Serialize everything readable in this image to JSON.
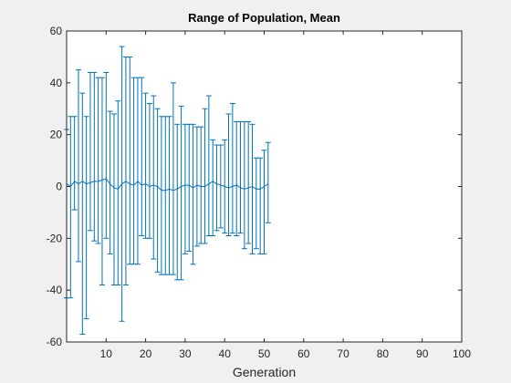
{
  "chart_data": {
    "type": "errorbar",
    "title": "Range of Population, Mean",
    "xlabel": "Generation",
    "ylabel": "",
    "xlim": [
      0,
      100
    ],
    "ylim": [
      -60,
      60
    ],
    "xticks": [
      10,
      20,
      30,
      40,
      50,
      60,
      70,
      80,
      90,
      100
    ],
    "yticks": [
      60,
      40,
      20,
      0,
      -20,
      -40,
      -60
    ],
    "grid": false,
    "series_color": "#0072bd",
    "x": [
      0,
      1,
      2,
      3,
      4,
      5,
      6,
      7,
      8,
      9,
      10,
      11,
      12,
      13,
      14,
      15,
      16,
      17,
      18,
      19,
      20,
      21,
      22,
      23,
      24,
      25,
      26,
      27,
      28,
      29,
      30,
      31,
      32,
      33,
      34,
      35,
      36,
      37,
      38,
      39,
      40,
      41,
      42,
      43,
      44,
      45,
      46,
      47,
      48,
      49,
      50,
      51
    ],
    "mean": [
      1.0,
      0.0,
      2.0,
      1.0,
      2.0,
      1.0,
      1.5,
      2.0,
      2.0,
      2.5,
      3.0,
      1.0,
      -0.5,
      -1.0,
      1.0,
      2.0,
      1.0,
      0.5,
      2.0,
      0.5,
      1.0,
      0.0,
      0.5,
      0.0,
      -1.5,
      -1.5,
      -1.0,
      -1.5,
      -1.0,
      0.0,
      0.5,
      0.5,
      -0.5,
      0.5,
      0.0,
      0.0,
      1.0,
      2.0,
      1.0,
      0.5,
      0.0,
      -0.5,
      0.0,
      0.5,
      -0.5,
      -1.0,
      -0.5,
      0.0,
      -1.0,
      -1.0,
      0.0,
      1.0
    ],
    "upper": [
      22,
      27,
      27,
      45,
      36,
      27,
      44,
      44,
      42,
      42,
      44,
      29,
      28,
      33,
      54,
      50,
      50,
      42,
      42,
      42,
      36,
      32,
      35,
      30,
      27,
      27,
      27,
      40,
      24,
      31,
      24,
      24,
      24,
      23,
      23,
      30,
      35,
      18,
      16,
      16,
      18,
      28,
      32,
      25,
      25,
      25,
      25,
      24,
      11,
      11,
      14,
      17
    ],
    "lower": [
      -43,
      -43,
      -9,
      -29,
      -57,
      -51,
      -17,
      -21,
      -22,
      -38,
      -20,
      -26,
      -38,
      -38,
      -52,
      -38,
      -30,
      -30,
      -30,
      -19,
      -20,
      -20,
      -28,
      -33,
      -34,
      -34,
      -34,
      -34,
      -36,
      -36,
      -26,
      -25,
      -30,
      -23,
      -22,
      -22,
      -19,
      -19,
      -17,
      -16,
      -18,
      -19,
      -18,
      -19,
      -18,
      -24,
      -22,
      -26,
      -24,
      -26,
      -26,
      -14
    ]
  }
}
